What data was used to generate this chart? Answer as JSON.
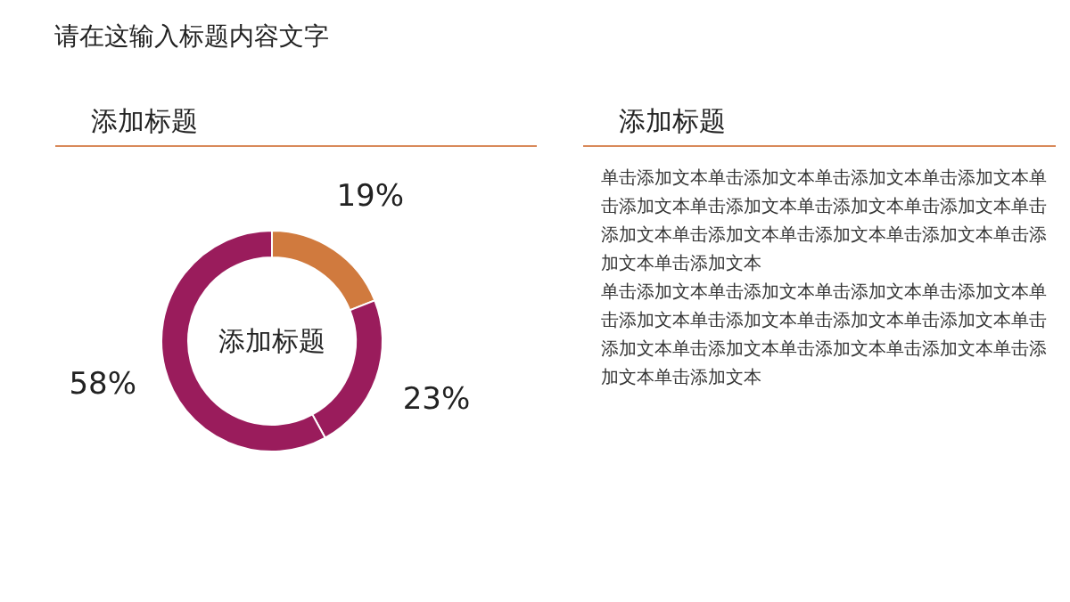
{
  "chart_data": [
    {
      "type": "donut",
      "title": "请在这输入标题内容文字",
      "subtitle": "添加标题",
      "categories": [
        null,
        null,
        null
      ],
      "values": [
        19,
        23,
        58
      ],
      "colors": [
        "#d07a3e",
        "#9a1c5c",
        "#9a1c5c"
      ],
      "value_labels": [
        "19%",
        "23%",
        "58%"
      ],
      "annotations": [
        "添加标题"
      ],
      "legend": false
    },
    {
      "type": "other",
      "title": "添加标题",
      "annotations": [
        "单击添加文本单击添加文本单击添加文本单击添加文本单击添加文本单击添加文本单击添加文本单击添加文本单击添加文本单击添加文本单击添加文本单击添加文本单击添加文本单击添加文本",
        "单击添加文本单击添加文本单击添加文本单击添加文本单击添加文本单击添加文本单击添加文本单击添加文本单击添加文本单击添加文本单击添加文本单击添加文本单击添加文本单击添加文本"
      ]
    }
  ]
}
